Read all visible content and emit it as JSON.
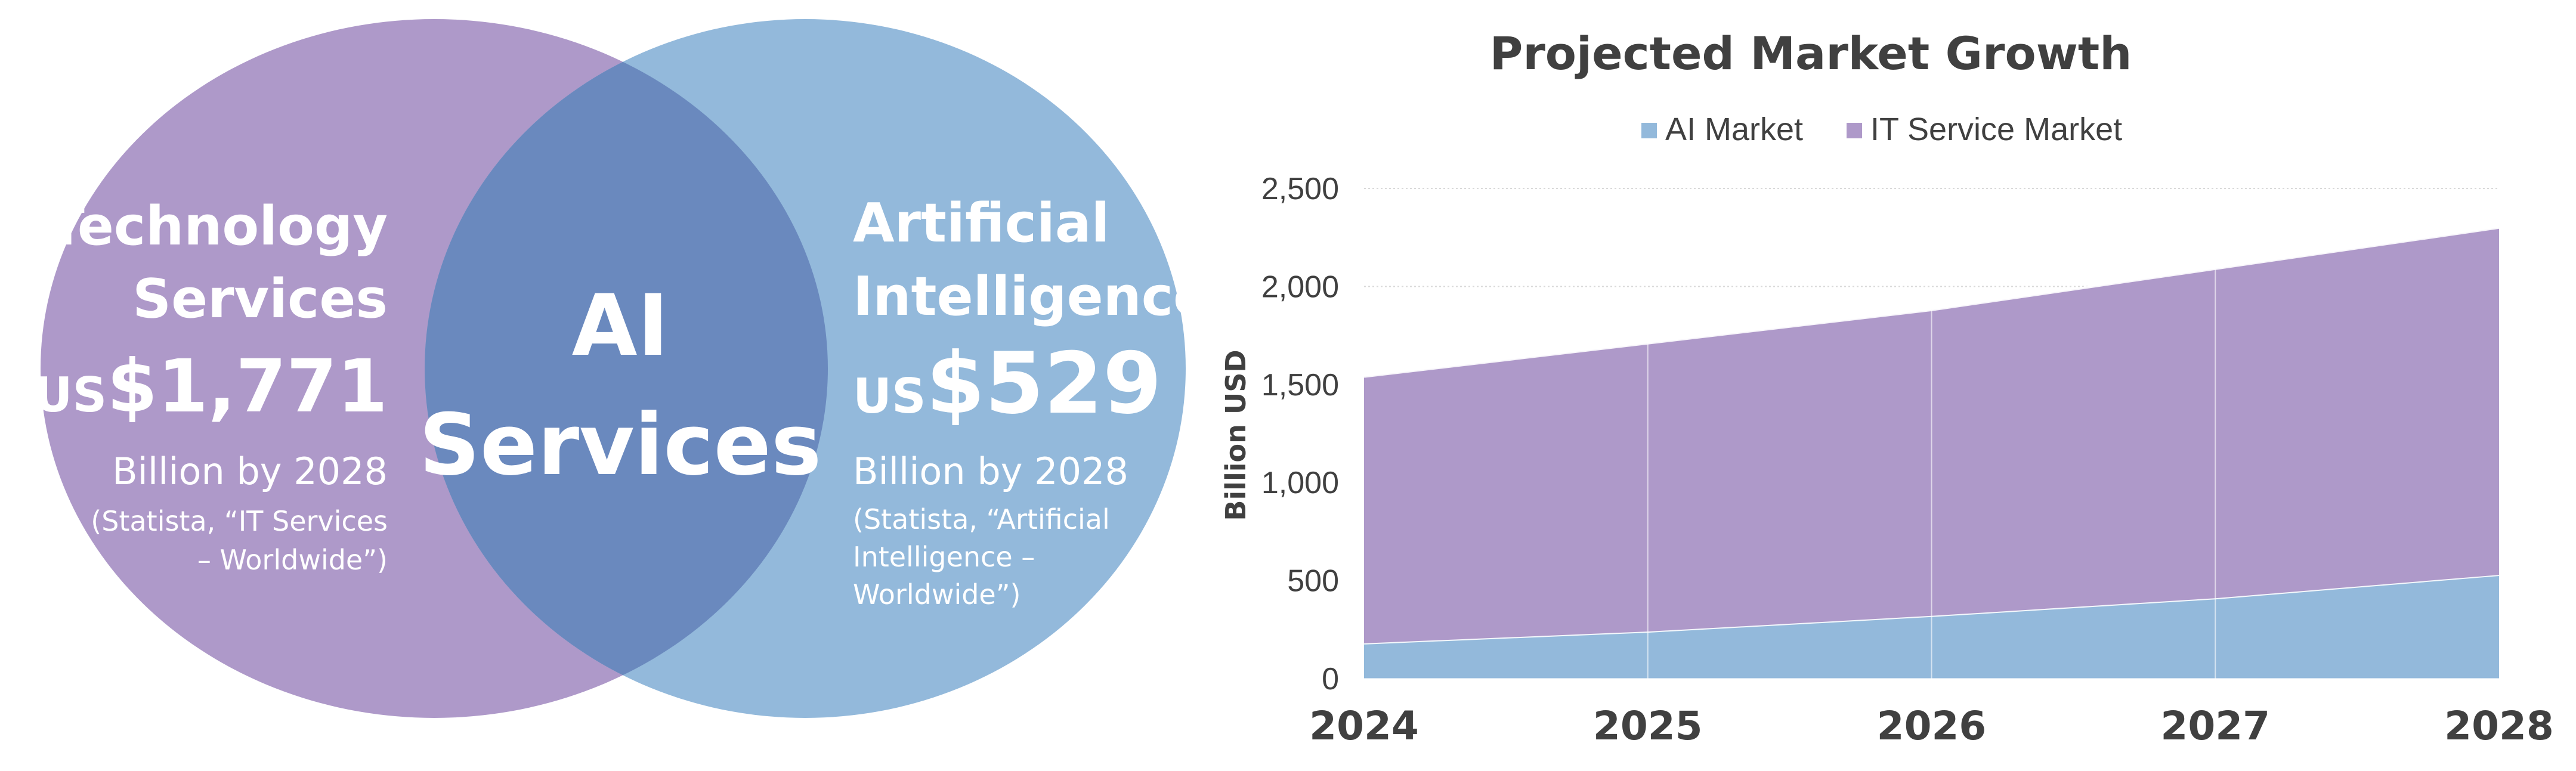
{
  "colors": {
    "purple": "#AE99C9",
    "blue": "#93B9DB",
    "overlap": "#6A89BE",
    "white": "#FFFFFF",
    "title": "#404040",
    "axis_text": "#404040",
    "grid": "#D9D9D9"
  },
  "venn": {
    "left": {
      "title_line1": "Technology",
      "title_line2": "Services",
      "value_prefix": "US",
      "value": "$1,771",
      "subtitle": "Billion by 2028",
      "source_line1": "(Statista, “IT Services",
      "source_line2": "– Worldwide”)"
    },
    "center": {
      "line1": "AI",
      "line2": "Services"
    },
    "right": {
      "title_line1": "Artificial",
      "title_line2": "Intelligence",
      "value_prefix": "US",
      "value": "$529",
      "subtitle": "Billion by 2028",
      "source_line1": "(Statista, “Artificial",
      "source_line2": "Intelligence –",
      "source_line3": "Worldwide”)"
    }
  },
  "chart_data": {
    "type": "area",
    "stacked": true,
    "title": "Projected Market Growth",
    "ylabel": "Billion USD",
    "xlabel": "",
    "x": [
      "2024",
      "2025",
      "2026",
      "2027",
      "2028"
    ],
    "ylim": [
      0,
      2500
    ],
    "yticks": [
      "0",
      "500",
      "1,000",
      "1,500",
      "2,000",
      "2,500"
    ],
    "ytick_values": [
      0,
      500,
      1000,
      1500,
      2000,
      2500
    ],
    "grid": true,
    "legend_position": "top",
    "series": [
      {
        "name": "AI Market",
        "color": "#93B9DB",
        "values": [
          180,
          240,
          320,
          410,
          529
        ]
      },
      {
        "name": "IT Service Market",
        "color": "#AE99C9",
        "values": [
          1360,
          1470,
          1560,
          1680,
          1771
        ]
      }
    ]
  }
}
